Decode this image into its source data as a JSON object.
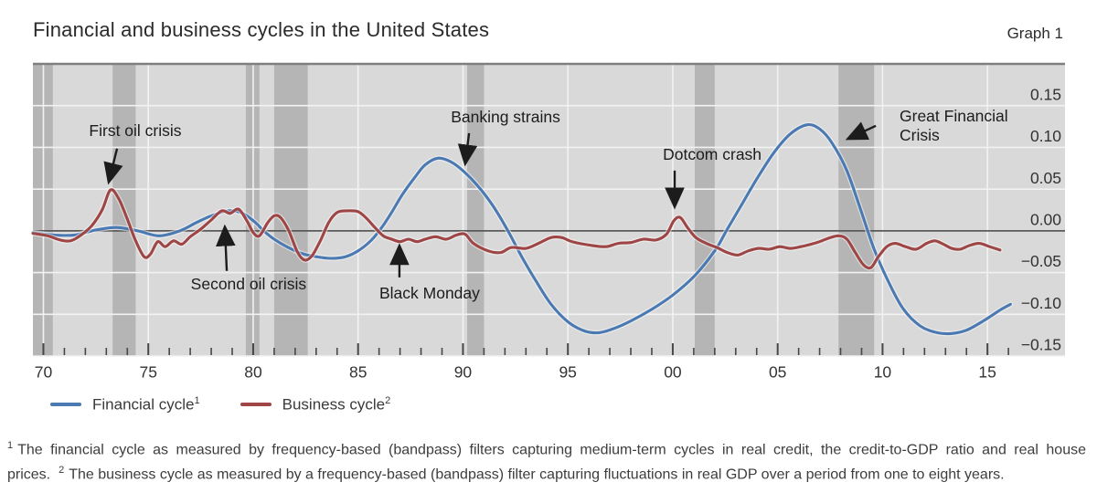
{
  "header": {
    "title": "Financial and business cycles in the United States",
    "graph_label": "Graph 1"
  },
  "colors": {
    "financial": "#4b79b2",
    "business": "#9e4545",
    "plot_bg": "#d9d9d9",
    "band": "#b5b5b5",
    "grid": "#f2f2f2",
    "zero_line": "#5a5a5a",
    "top_border": "#7f7f7f",
    "tick": "#474747",
    "axis_text": "#333333",
    "annotation": "#1c1c1c"
  },
  "chart_data": {
    "type": "line",
    "title": "Financial and business cycles in the United States",
    "x_axis": {
      "domain": [
        1969.5,
        2016.3
      ],
      "minor_tick_start": 1970,
      "minor_tick_end": 2016,
      "label_years": [
        1970,
        1975,
        1980,
        1985,
        1990,
        1995,
        2000,
        2005,
        2010,
        2015
      ],
      "labels": [
        "70",
        "75",
        "80",
        "85",
        "90",
        "95",
        "00",
        "05",
        "10",
        "15"
      ]
    },
    "y_axis": {
      "domain": [
        -0.15,
        0.2
      ],
      "tick_values": [
        0.15,
        0.1,
        0.05,
        0.0,
        -0.05,
        -0.1,
        -0.15
      ],
      "tick_labels": [
        "0.15",
        "0.10",
        "0.05",
        "0.00",
        "−0.05",
        "−0.10",
        "−0.15"
      ],
      "zero_line": 0.0,
      "grid": true,
      "side": "right"
    },
    "recession_bands": [
      [
        1969.5,
        1970.45
      ],
      [
        1973.3,
        1974.4
      ],
      [
        1979.65,
        1980.3
      ],
      [
        1981.0,
        1982.6
      ],
      [
        1990.2,
        1991.0
      ],
      [
        2001.05,
        2002.0
      ],
      [
        2007.9,
        2009.6
      ]
    ],
    "series": [
      {
        "name": "Financial cycle",
        "sup": "1",
        "color": "#4b79b2",
        "points": [
          [
            1969.5,
            -0.002
          ],
          [
            1970.5,
            -0.005
          ],
          [
            1971.5,
            -0.005
          ],
          [
            1972.5,
            0.001
          ],
          [
            1973.5,
            0.004
          ],
          [
            1974.5,
            0.0
          ],
          [
            1975.5,
            -0.006
          ],
          [
            1976.5,
            0.0
          ],
          [
            1977.3,
            0.01
          ],
          [
            1978.0,
            0.018
          ],
          [
            1978.8,
            0.024
          ],
          [
            1979.5,
            0.021
          ],
          [
            1980.1,
            0.01
          ],
          [
            1980.5,
            0.0
          ],
          [
            1981.0,
            -0.01
          ],
          [
            1981.6,
            -0.019
          ],
          [
            1982.3,
            -0.027
          ],
          [
            1983.0,
            -0.031
          ],
          [
            1983.7,
            -0.033
          ],
          [
            1984.4,
            -0.031
          ],
          [
            1985.0,
            -0.024
          ],
          [
            1985.6,
            -0.012
          ],
          [
            1986.1,
            0.003
          ],
          [
            1986.6,
            0.022
          ],
          [
            1987.1,
            0.043
          ],
          [
            1987.7,
            0.064
          ],
          [
            1988.2,
            0.079
          ],
          [
            1988.8,
            0.087
          ],
          [
            1989.4,
            0.083
          ],
          [
            1990.0,
            0.072
          ],
          [
            1990.7,
            0.054
          ],
          [
            1991.4,
            0.031
          ],
          [
            1992.1,
            0.002
          ],
          [
            1992.8,
            -0.031
          ],
          [
            1993.5,
            -0.061
          ],
          [
            1994.2,
            -0.088
          ],
          [
            1995.0,
            -0.109
          ],
          [
            1995.8,
            -0.12
          ],
          [
            1996.5,
            -0.122
          ],
          [
            1997.2,
            -0.117
          ],
          [
            1998.0,
            -0.108
          ],
          [
            1999.0,
            -0.094
          ],
          [
            2000.0,
            -0.077
          ],
          [
            2001.0,
            -0.055
          ],
          [
            2002.0,
            -0.024
          ],
          [
            2002.6,
            0.002
          ],
          [
            2003.3,
            0.032
          ],
          [
            2004.0,
            0.062
          ],
          [
            2004.8,
            0.093
          ],
          [
            2005.6,
            0.116
          ],
          [
            2006.4,
            0.127
          ],
          [
            2007.0,
            0.122
          ],
          [
            2007.6,
            0.105
          ],
          [
            2008.3,
            0.072
          ],
          [
            2009.0,
            0.022
          ],
          [
            2009.6,
            -0.022
          ],
          [
            2010.3,
            -0.062
          ],
          [
            2011.0,
            -0.094
          ],
          [
            2011.8,
            -0.114
          ],
          [
            2012.6,
            -0.122
          ],
          [
            2013.3,
            -0.123
          ],
          [
            2014.0,
            -0.119
          ],
          [
            2014.8,
            -0.108
          ],
          [
            2015.6,
            -0.095
          ],
          [
            2016.1,
            -0.088
          ]
        ]
      },
      {
        "name": "Business cycle",
        "sup": "2",
        "color": "#9e4545",
        "points": [
          [
            1969.5,
            -0.003
          ],
          [
            1970.2,
            -0.006
          ],
          [
            1970.8,
            -0.011
          ],
          [
            1971.3,
            -0.012
          ],
          [
            1971.8,
            -0.005
          ],
          [
            1972.3,
            0.006
          ],
          [
            1972.8,
            0.025
          ],
          [
            1973.2,
            0.049
          ],
          [
            1973.6,
            0.038
          ],
          [
            1974.0,
            0.014
          ],
          [
            1974.4,
            -0.012
          ],
          [
            1974.8,
            -0.031
          ],
          [
            1975.1,
            -0.028
          ],
          [
            1975.45,
            -0.013
          ],
          [
            1975.8,
            -0.019
          ],
          [
            1976.2,
            -0.012
          ],
          [
            1976.6,
            -0.016
          ],
          [
            1977.0,
            -0.007
          ],
          [
            1977.5,
            0.002
          ],
          [
            1978.0,
            0.013
          ],
          [
            1978.5,
            0.024
          ],
          [
            1978.9,
            0.021
          ],
          [
            1979.3,
            0.026
          ],
          [
            1979.7,
            0.012
          ],
          [
            1980.0,
            -0.002
          ],
          [
            1980.3,
            -0.006
          ],
          [
            1980.7,
            0.01
          ],
          [
            1981.0,
            0.018
          ],
          [
            1981.3,
            0.016
          ],
          [
            1981.7,
            0.0
          ],
          [
            1982.1,
            -0.025
          ],
          [
            1982.45,
            -0.035
          ],
          [
            1982.8,
            -0.03
          ],
          [
            1983.2,
            -0.012
          ],
          [
            1983.6,
            0.01
          ],
          [
            1984.0,
            0.022
          ],
          [
            1984.5,
            0.024
          ],
          [
            1985.0,
            0.023
          ],
          [
            1985.4,
            0.015
          ],
          [
            1985.8,
            0.004
          ],
          [
            1986.2,
            -0.006
          ],
          [
            1986.6,
            -0.01
          ],
          [
            1987.0,
            -0.013
          ],
          [
            1987.4,
            -0.01
          ],
          [
            1987.8,
            -0.013
          ],
          [
            1988.2,
            -0.01
          ],
          [
            1988.7,
            -0.007
          ],
          [
            1989.2,
            -0.01
          ],
          [
            1989.7,
            -0.005
          ],
          [
            1990.1,
            -0.004
          ],
          [
            1990.5,
            -0.015
          ],
          [
            1991.2,
            -0.024
          ],
          [
            1991.8,
            -0.026
          ],
          [
            1992.3,
            -0.02
          ],
          [
            1993.0,
            -0.021
          ],
          [
            1993.6,
            -0.015
          ],
          [
            1994.2,
            -0.008
          ],
          [
            1994.7,
            -0.008
          ],
          [
            1995.2,
            -0.013
          ],
          [
            1996.0,
            -0.017
          ],
          [
            1996.8,
            -0.019
          ],
          [
            1997.4,
            -0.015
          ],
          [
            1998.0,
            -0.014
          ],
          [
            1998.6,
            -0.01
          ],
          [
            1999.2,
            -0.011
          ],
          [
            1999.7,
            -0.004
          ],
          [
            2000.05,
            0.012
          ],
          [
            2000.35,
            0.016
          ],
          [
            2000.7,
            0.004
          ],
          [
            2001.1,
            -0.008
          ],
          [
            2001.6,
            -0.015
          ],
          [
            2002.1,
            -0.02
          ],
          [
            2002.6,
            -0.026
          ],
          [
            2003.1,
            -0.029
          ],
          [
            2003.6,
            -0.024
          ],
          [
            2004.1,
            -0.021
          ],
          [
            2004.6,
            -0.022
          ],
          [
            2005.1,
            -0.019
          ],
          [
            2005.6,
            -0.021
          ],
          [
            2006.1,
            -0.019
          ],
          [
            2006.6,
            -0.016
          ],
          [
            2007.0,
            -0.013
          ],
          [
            2007.4,
            -0.009
          ],
          [
            2007.9,
            -0.006
          ],
          [
            2008.3,
            -0.01
          ],
          [
            2008.7,
            -0.026
          ],
          [
            2009.1,
            -0.041
          ],
          [
            2009.45,
            -0.044
          ],
          [
            2009.8,
            -0.031
          ],
          [
            2010.2,
            -0.019
          ],
          [
            2010.6,
            -0.015
          ],
          [
            2011.1,
            -0.019
          ],
          [
            2011.6,
            -0.022
          ],
          [
            2012.1,
            -0.015
          ],
          [
            2012.5,
            -0.012
          ],
          [
            2012.9,
            -0.016
          ],
          [
            2013.3,
            -0.021
          ],
          [
            2013.7,
            -0.022
          ],
          [
            2014.1,
            -0.018
          ],
          [
            2014.6,
            -0.015
          ],
          [
            2015.1,
            -0.019
          ],
          [
            2015.6,
            -0.023
          ]
        ]
      }
    ],
    "annotations": [
      {
        "id": "first-oil-crisis",
        "lines": [
          "First oil crisis"
        ],
        "anchor": "middle",
        "x": 1974.38,
        "y": 0.119,
        "arrow": {
          "x1": 1973.51,
          "y1": 0.0985,
          "x2": 1973.12,
          "y2": 0.059
        }
      },
      {
        "id": "second-oil-crisis",
        "lines": [
          "Second oil crisis"
        ],
        "anchor": "middle",
        "x": 1979.78,
        "y": -0.0646,
        "arrow": {
          "x1": 1978.74,
          "y1": -0.048,
          "x2": 1978.65,
          "y2": 0.004
        }
      },
      {
        "id": "banking-strains",
        "lines": [
          "Banking strains"
        ],
        "anchor": "middle",
        "x": 1992.03,
        "y": 0.1357,
        "arrow": {
          "x1": 1990.29,
          "y1": 0.117,
          "x2": 1990.11,
          "y2": 0.081
        }
      },
      {
        "id": "black-monday",
        "lines": [
          "Black Monday"
        ],
        "anchor": "middle",
        "x": 1988.41,
        "y": -0.0755,
        "arrow": {
          "x1": 1986.97,
          "y1": -0.0558,
          "x2": 1986.97,
          "y2": -0.0186
        }
      },
      {
        "id": "dotcom-crash",
        "lines": [
          "Dotcom crash"
        ],
        "anchor": "middle",
        "x": 2001.88,
        "y": 0.0908,
        "arrow": {
          "x1": 2000.09,
          "y1": 0.0722,
          "x2": 2000.09,
          "y2": 0.0295
        }
      },
      {
        "id": "great-financial-crisis",
        "lines": [
          "Great Financial",
          "Crisis"
        ],
        "anchor": "start",
        "x": 2010.81,
        "y": 0.1368,
        "arrow": {
          "x1": 2009.68,
          "y1": 0.1258,
          "x2": 2008.37,
          "y2": 0.1105
        }
      }
    ]
  },
  "legend": {
    "items": [
      {
        "label": "Financial cycle",
        "sup": "1",
        "color": "#4b79b2"
      },
      {
        "label": "Business cycle",
        "sup": "2",
        "color": "#9e4545"
      }
    ]
  },
  "footnote": {
    "marker1": "1",
    "part1": "The financial cycle as measured by frequency-based (bandpass) filters capturing medium-term cycles in real credit, the credit-to-GDP ratio and real house prices.",
    "marker2": "2",
    "part2": "The business cycle as measured by a frequency-based (bandpass) filter capturing fluctuations in real GDP over a period from one to eight years."
  }
}
